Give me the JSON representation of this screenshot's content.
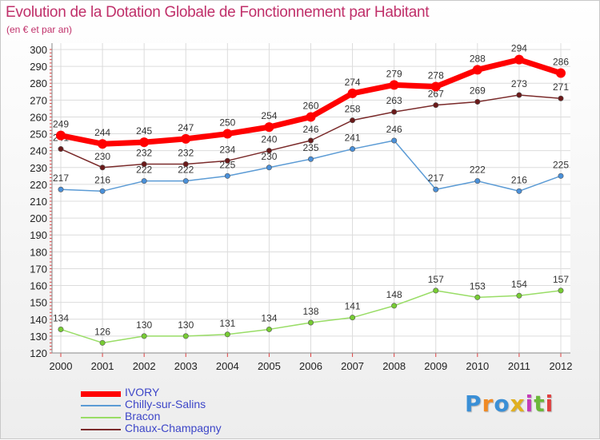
{
  "header": {
    "title": "Evolution de la Dotation Globale de Fonctionnement par Habitant",
    "subtitle": "(en € et par an)"
  },
  "logo": {
    "text": "Proxiti",
    "colors": [
      "#3a8fd6",
      "#f08a24",
      "#3a8fd6",
      "#e0b020",
      "#c43cb8",
      "#6cb83a",
      "#e04040"
    ]
  },
  "chart_data": {
    "type": "line",
    "title": "Evolution de la Dotation Globale de Fonctionnement par Habitant",
    "subtitle": "(en € et par an)",
    "xlabel": "",
    "ylabel": "",
    "x": [
      "2000",
      "2001",
      "2002",
      "2003",
      "2004",
      "2005",
      "2006",
      "2007",
      "2008",
      "2009",
      "2010",
      "2011",
      "2012"
    ],
    "ylim": [
      120,
      300
    ],
    "yticks": [
      120,
      130,
      140,
      150,
      160,
      170,
      180,
      190,
      200,
      210,
      220,
      230,
      240,
      250,
      260,
      270,
      280,
      290,
      300
    ],
    "grid": true,
    "legend": "bottom-left",
    "series": [
      {
        "name": "IVORY",
        "color": "#ff0000",
        "emphasis": true,
        "values": [
          249,
          244,
          245,
          247,
          250,
          254,
          260,
          274,
          279,
          278,
          288,
          294,
          286
        ]
      },
      {
        "name": "Chilly-sur-Salins",
        "color": "#5b9bd5",
        "values": [
          217,
          216,
          222,
          222,
          225,
          230,
          235,
          241,
          246,
          217,
          222,
          216,
          225
        ]
      },
      {
        "name": "Bracon",
        "color": "#99dd66",
        "values": [
          134,
          126,
          130,
          130,
          131,
          134,
          138,
          141,
          148,
          157,
          153,
          154,
          157
        ]
      },
      {
        "name": "Chaux-Champagny",
        "color": "#7a2a2a",
        "values": [
          241,
          230,
          232,
          232,
          234,
          240,
          246,
          258,
          263,
          267,
          269,
          273,
          271
        ]
      }
    ]
  }
}
